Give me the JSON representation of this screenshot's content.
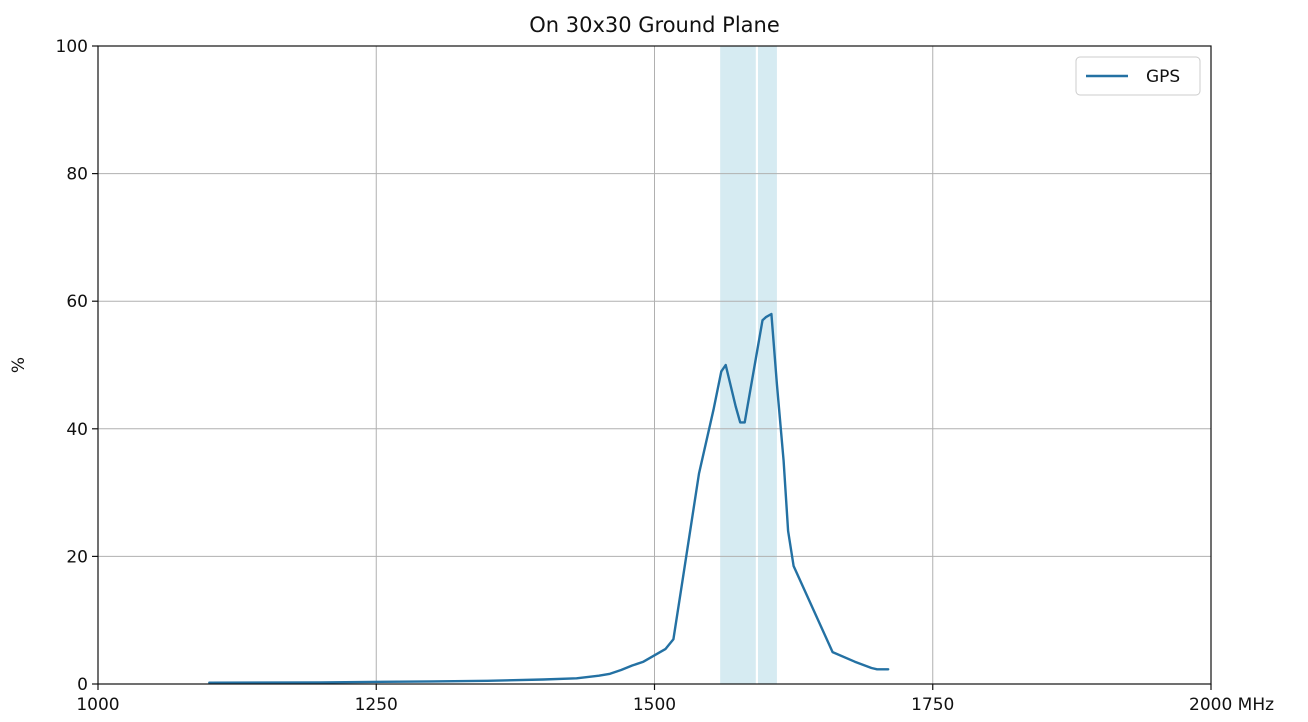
{
  "chart_data": {
    "type": "line",
    "title": "On 30x30 Ground Plane",
    "xlabel": "",
    "ylabel": "%",
    "xlim": [
      1000,
      2000
    ],
    "ylim": [
      0,
      100
    ],
    "x_ticks": [
      "1000",
      "1250",
      "1500",
      "1750",
      "2000 MHz"
    ],
    "x_tick_values": [
      1000,
      1250,
      1500,
      1750,
      2000
    ],
    "y_ticks": [
      "0",
      "20",
      "40",
      "60",
      "80",
      "100"
    ],
    "y_tick_values": [
      0,
      20,
      40,
      60,
      80,
      100
    ],
    "grid": true,
    "legend_position": "top-right",
    "bands": [
      {
        "x_start": 1559,
        "x_end": 1591,
        "color": "#add8e6"
      },
      {
        "x_start": 1593,
        "x_end": 1610,
        "color": "#add8e6"
      }
    ],
    "series": [
      {
        "name": "GPS",
        "color": "#2471a3",
        "x": [
          1100,
          1200,
          1300,
          1350,
          1400,
          1430,
          1450,
          1460,
          1470,
          1480,
          1490,
          1500,
          1510,
          1517,
          1525,
          1540,
          1553,
          1560,
          1564,
          1573,
          1577,
          1581,
          1590,
          1597,
          1600,
          1605,
          1610,
          1616,
          1620,
          1625,
          1660,
          1680,
          1695,
          1700,
          1710
        ],
        "values": [
          0.2,
          0.25,
          0.4,
          0.5,
          0.7,
          0.9,
          1.3,
          1.6,
          2.2,
          2.9,
          3.5,
          4.5,
          5.5,
          7.0,
          16.0,
          33.0,
          43.0,
          49.0,
          50.0,
          43.5,
          41.0,
          41.0,
          50.0,
          57.0,
          57.5,
          58.0,
          47.0,
          35.0,
          24.0,
          18.5,
          5.0,
          3.5,
          2.5,
          2.3,
          2.3
        ]
      }
    ]
  }
}
